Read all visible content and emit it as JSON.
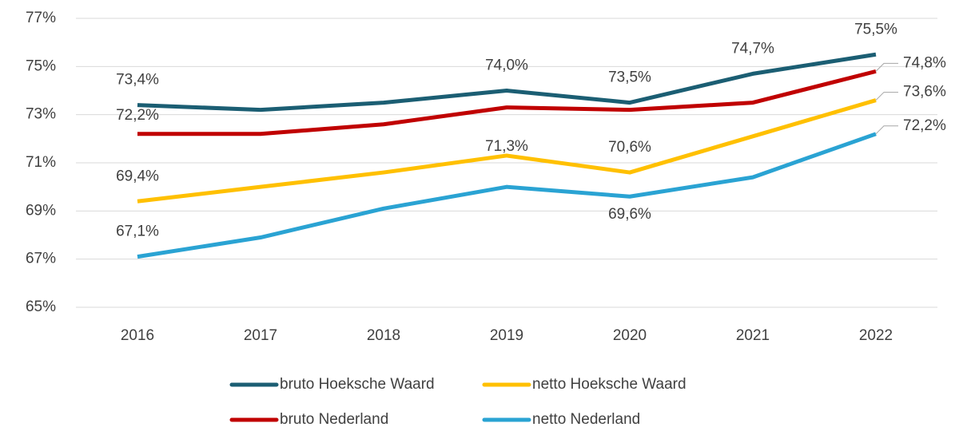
{
  "chart_data": {
    "type": "line",
    "categories": [
      "2016",
      "2017",
      "2018",
      "2019",
      "2020",
      "2021",
      "2022"
    ],
    "ylim": [
      65,
      77
    ],
    "yticks": [
      {
        "value": 65,
        "label": "65%"
      },
      {
        "value": 67,
        "label": "67%"
      },
      {
        "value": 69,
        "label": "69%"
      },
      {
        "value": 71,
        "label": "71%"
      },
      {
        "value": 73,
        "label": "73%"
      },
      {
        "value": 75,
        "label": "75%"
      },
      {
        "value": 77,
        "label": "77%"
      }
    ],
    "grid": true,
    "legend": "bottom",
    "series": [
      {
        "name": "bruto Hoeksche Waard",
        "color": "#1b5e73",
        "values": [
          73.4,
          73.2,
          73.5,
          74.0,
          73.5,
          74.7,
          75.5
        ],
        "value_labels": [
          "73,4%",
          null,
          null,
          "74,0%",
          "73,5%",
          "74,7%",
          "75,5%"
        ]
      },
      {
        "name": "netto Hoeksche Waard",
        "color": "#ffc000",
        "values": [
          69.4,
          70.0,
          70.6,
          71.3,
          70.6,
          72.1,
          73.6
        ],
        "value_labels": [
          "69,4%",
          null,
          null,
          "71,3%",
          "70,6%",
          null,
          "73,6%"
        ]
      },
      {
        "name": "bruto Nederland",
        "color": "#c00000",
        "values": [
          72.2,
          72.2,
          72.6,
          73.3,
          73.2,
          73.5,
          74.8
        ],
        "value_labels": [
          "72,2%",
          null,
          null,
          null,
          null,
          null,
          "74,8%"
        ]
      },
      {
        "name": "netto Nederland",
        "color": "#2aa3d3",
        "values": [
          67.1,
          67.9,
          69.1,
          70.0,
          69.6,
          70.4,
          72.2
        ],
        "value_labels": [
          "67,1%",
          null,
          null,
          null,
          "69,6%",
          null,
          "72,2%"
        ]
      }
    ]
  }
}
